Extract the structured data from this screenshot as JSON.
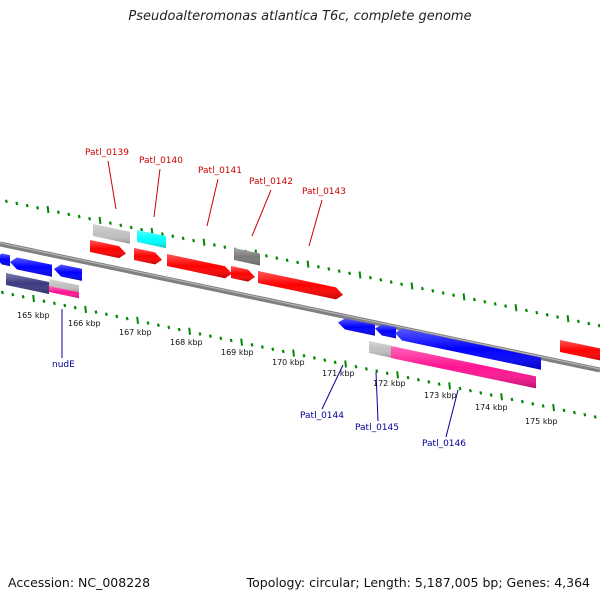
{
  "title": "Pseudoalteromonas atlantica T6c, complete genome",
  "footer": {
    "accession": "Accession: NC_008228",
    "topology": "Topology: circular; Length: 5,187,005 bp; Genes: 4,364"
  },
  "scale_labels": [
    "165 kbp",
    "166 kbp",
    "167 kbp",
    "168 kbp",
    "169 kbp",
    "170 kbp",
    "171 kbp",
    "172 kbp",
    "173 kbp",
    "174 kbp",
    "175 kbp"
  ],
  "forward_genes": [
    {
      "label": "Patl_0139",
      "color": "#ff0000"
    },
    {
      "label": "Patl_0140",
      "color": "#00ffff"
    },
    {
      "label": "Patl_0141",
      "color": "#ff0000"
    },
    {
      "label": "Patl_0142",
      "color": "#7a7a7a"
    },
    {
      "label": "Patl_0143",
      "color": "#ff0000"
    }
  ],
  "reverse_genes": [
    {
      "label": "nudE",
      "color": "#0000ff"
    },
    {
      "label": "Patl_0144",
      "color": "#0000ff"
    },
    {
      "label": "Patl_0145",
      "color": "#0000ff"
    },
    {
      "label": "Patl_0146",
      "color": "#ff1493"
    }
  ],
  "colors": {
    "forward_label": "#cc0000",
    "reverse_label": "#000099",
    "tick": "#008800",
    "backbone": "#808080",
    "forward_cds": "#ff0000",
    "reverse_cds": "#0000ff",
    "cog_a": "#ff1493",
    "cog_b": "#00ffff",
    "cog_c": "#c0c0c0",
    "cog_d": "#7a7a7a",
    "cog_e": "#3a3a80"
  }
}
